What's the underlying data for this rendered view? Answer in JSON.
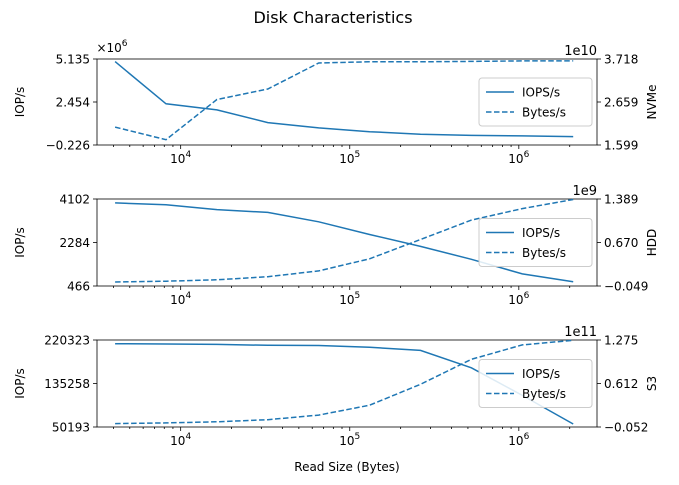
{
  "title": "Disk Characteristics",
  "colors": {
    "series": "#1f77b4",
    "axis": "#000000"
  },
  "chart_data": [
    {
      "type": "line",
      "name": "NVMe",
      "x": [
        4096,
        8192,
        16384,
        32768,
        65536,
        131072,
        262144,
        524288,
        1048576,
        2097152
      ],
      "xscale": "log",
      "xlim": [
        3200,
        2900000
      ],
      "x_ticks": [
        "10^4",
        "10^5",
        "10^6"
      ],
      "xlabel": "",
      "ylabel_left": "IOP/s",
      "ylabel_right": "NVMe",
      "left_multiplier": "×10^6",
      "right_multiplier": "1e10",
      "left_ylim": [
        -0.226,
        5.135
      ],
      "left_ticks": [
        "5.135",
        "2.454",
        "−0.226"
      ],
      "right_ylim": [
        1.599,
        3.718
      ],
      "right_ticks": [
        "3.718",
        "2.659",
        "1.599"
      ],
      "legend": "center-right",
      "series": [
        {
          "name": "IOPS/s",
          "axis": "left",
          "style": "solid",
          "values": [
            4.97,
            2.34,
            1.96,
            1.17,
            0.84,
            0.6,
            0.45,
            0.37,
            0.34,
            0.3
          ]
        },
        {
          "name": "Bytes/s",
          "axis": "right",
          "style": "dashed",
          "values": [
            2.04,
            1.73,
            2.72,
            2.98,
            3.62,
            3.65,
            3.65,
            3.66,
            3.67,
            3.67
          ]
        }
      ]
    },
    {
      "type": "line",
      "name": "HDD",
      "x": [
        4096,
        8192,
        16384,
        32768,
        65536,
        131072,
        262144,
        524288,
        1048576,
        2097152
      ],
      "xscale": "log",
      "xlim": [
        3200,
        2900000
      ],
      "x_ticks": [
        "10^4",
        "10^5",
        "10^6"
      ],
      "xlabel": "",
      "ylabel_left": "IOP/s",
      "ylabel_right": "HDD",
      "left_multiplier": "",
      "right_multiplier": "1e9",
      "left_ylim": [
        466,
        4102
      ],
      "left_ticks": [
        "4102",
        "2284",
        "466"
      ],
      "right_ylim": [
        -0.049,
        1.389
      ],
      "right_ticks": [
        "1.389",
        "0.670",
        "−0.049"
      ],
      "legend": "center-right",
      "series": [
        {
          "name": "IOPS/s",
          "axis": "left",
          "style": "solid",
          "values": [
            3940,
            3860,
            3660,
            3540,
            3150,
            2620,
            2120,
            1580,
            970,
            640
          ]
        },
        {
          "name": "Bytes/s",
          "axis": "right",
          "style": "dashed",
          "values": [
            0.017,
            0.03,
            0.054,
            0.105,
            0.2,
            0.4,
            0.72,
            1.04,
            1.23,
            1.38
          ]
        }
      ]
    },
    {
      "type": "line",
      "name": "S3",
      "x": [
        4096,
        8192,
        16384,
        32768,
        65536,
        131072,
        262144,
        524288,
        1048576,
        2097152
      ],
      "xscale": "log",
      "xlim": [
        3200,
        2900000
      ],
      "x_ticks": [
        "10^4",
        "10^5",
        "10^6"
      ],
      "xlabel": "Read Size (Bytes)",
      "ylabel_left": "IOP/s",
      "ylabel_right": "S3",
      "left_multiplier": "",
      "right_multiplier": "1e11",
      "left_ylim": [
        50193,
        220323
      ],
      "left_ticks": [
        "220323",
        "135258",
        "50193"
      ],
      "right_ylim": [
        -0.052,
        1.275
      ],
      "right_ticks": [
        "1.275",
        "0.612",
        "−0.052"
      ],
      "legend": "center-right",
      "series": [
        {
          "name": "IOPS/s",
          "axis": "left",
          "style": "solid",
          "values": [
            213000,
            212500,
            211800,
            210000,
            209500,
            206000,
            200000,
            166000,
            112000,
            56000
          ]
        },
        {
          "name": "Bytes/s",
          "axis": "right",
          "style": "dashed",
          "values": [
            0.0,
            0.01,
            0.028,
            0.06,
            0.13,
            0.28,
            0.6,
            0.98,
            1.2,
            1.27
          ]
        }
      ]
    }
  ]
}
